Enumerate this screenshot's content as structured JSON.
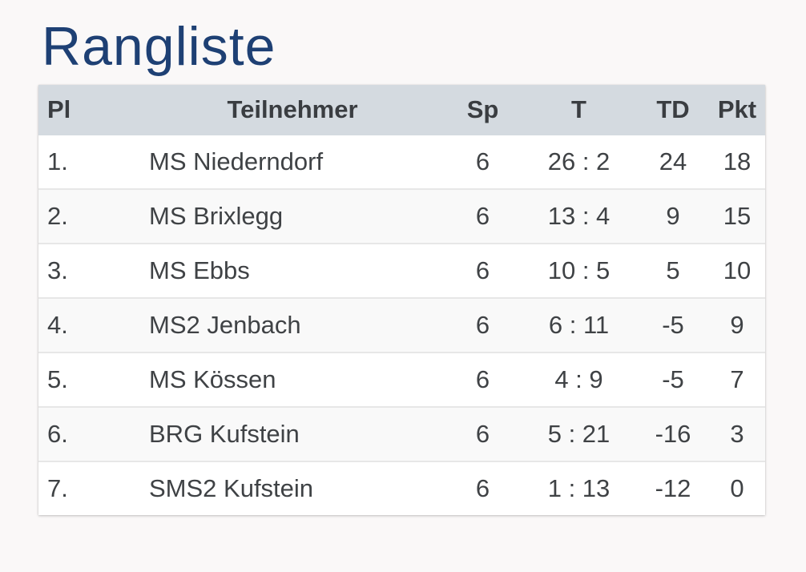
{
  "page": {
    "title": "Rangliste"
  },
  "colors": {
    "title_text": "#1e4074",
    "header_bg": "#d4dae0",
    "header_text": "#3a3d41",
    "cell_text": "#3f4245",
    "row_alt_bg": "#f9f9f9",
    "page_bg": "#faf8f8"
  },
  "table": {
    "columns": [
      {
        "key": "pl",
        "label": "Pl"
      },
      {
        "key": "name",
        "label": "Teilnehmer"
      },
      {
        "key": "sp",
        "label": "Sp"
      },
      {
        "key": "t",
        "label": "T"
      },
      {
        "key": "td",
        "label": "TD"
      },
      {
        "key": "pkt",
        "label": "Pkt"
      }
    ],
    "rows": [
      {
        "pl": "1.",
        "name": "MS Niederndorf",
        "sp": "6",
        "t": "26 : 2",
        "td": "24",
        "pkt": "18"
      },
      {
        "pl": "2.",
        "name": "MS Brixlegg",
        "sp": "6",
        "t": "13 : 4",
        "td": "9",
        "pkt": "15"
      },
      {
        "pl": "3.",
        "name": "MS Ebbs",
        "sp": "6",
        "t": "10 : 5",
        "td": "5",
        "pkt": "10"
      },
      {
        "pl": "4.",
        "name": "MS2 Jenbach",
        "sp": "6",
        "t": "6 : 11",
        "td": "-5",
        "pkt": "9"
      },
      {
        "pl": "5.",
        "name": "MS Kössen",
        "sp": "6",
        "t": "4 : 9",
        "td": "-5",
        "pkt": "7"
      },
      {
        "pl": "6.",
        "name": "BRG Kufstein",
        "sp": "6",
        "t": "5 : 21",
        "td": "-16",
        "pkt": "3"
      },
      {
        "pl": "7.",
        "name": "SMS2 Kufstein",
        "sp": "6",
        "t": "1 : 13",
        "td": "-12",
        "pkt": "0"
      }
    ]
  }
}
